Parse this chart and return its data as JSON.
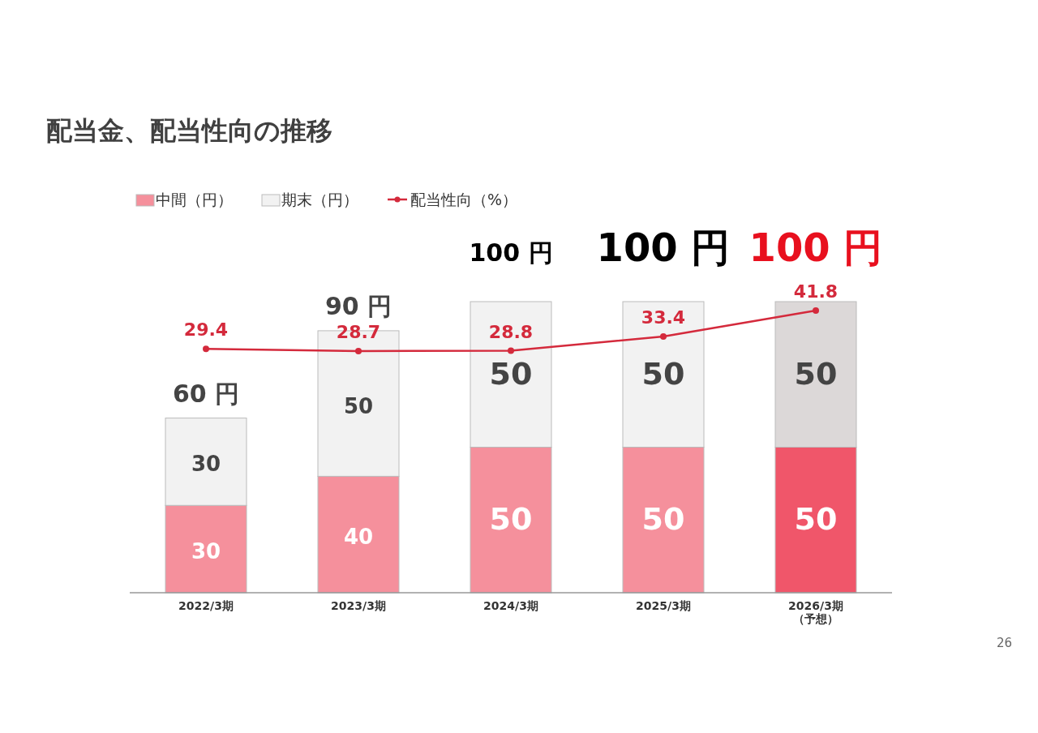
{
  "chart_data": {
    "type": "bar",
    "title": "配当金、配当性向の推移",
    "categories": [
      "2022/3期",
      "2023/3期",
      "2024/3期",
      "2025/3期",
      "2026/3期（予想）"
    ],
    "stacked": true,
    "data_labels": true,
    "legend": "top left",
    "series": [
      {
        "name": "中間（円）",
        "type": "bar",
        "colors": [
          "#f5909c",
          "#f5909c",
          "#f5909c",
          "#f5909c",
          "#f0566a"
        ],
        "values": [
          30,
          40,
          50,
          50,
          50
        ]
      },
      {
        "name": "期末（円）",
        "type": "bar",
        "colors": [
          "#f2f2f2",
          "#f2f2f2",
          "#f2f2f2",
          "#f2f2f2",
          "#dcd8d8"
        ],
        "values": [
          30,
          50,
          50,
          50,
          50
        ]
      },
      {
        "name": "配当性向（%）",
        "type": "line",
        "axis": "y2",
        "color": "#d42a3c",
        "marker": "circle",
        "values": [
          29.4,
          28.7,
          28.8,
          33.4,
          41.8
        ]
      }
    ],
    "totals": [
      "60 円",
      "90 円",
      "100 円",
      "100 円",
      "100 円"
    ],
    "annotations": [
      "26"
    ]
  }
}
